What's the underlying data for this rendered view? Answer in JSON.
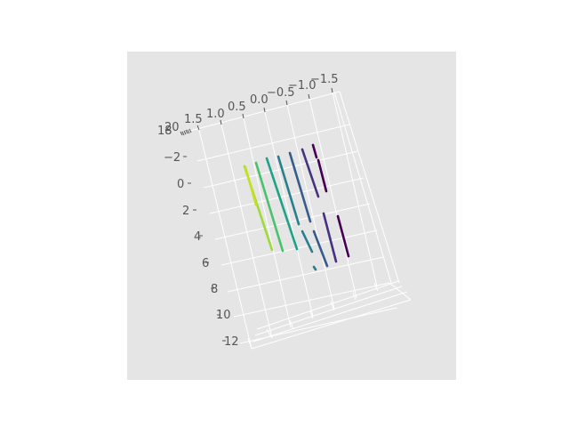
{
  "chart_data": {
    "type": "line",
    "projection": "3d",
    "style": "ggplot-grey-background",
    "colormap": "viridis",
    "title": "",
    "xlabel": "",
    "ylabel": "",
    "zlabel": "",
    "x_ticks": [
      "1.5",
      "1.0",
      "0.5",
      "0.0",
      "−0.5",
      "−1.0",
      "−1.5"
    ],
    "y_ticks": [
      "−2",
      "0",
      "2",
      "4",
      "6",
      "8",
      "10",
      "12"
    ],
    "z_ticks_overlapping": [
      "18",
      "20"
    ],
    "xlim": [
      -1.5,
      1.5
    ],
    "ylim": [
      -2,
      12
    ],
    "grid": true,
    "series_count": 8,
    "series_colors": [
      "#440154",
      "#46327e",
      "#365c8d",
      "#277f8e",
      "#1fa187",
      "#4ac16d",
      "#a0da39",
      "#c5e021"
    ]
  }
}
